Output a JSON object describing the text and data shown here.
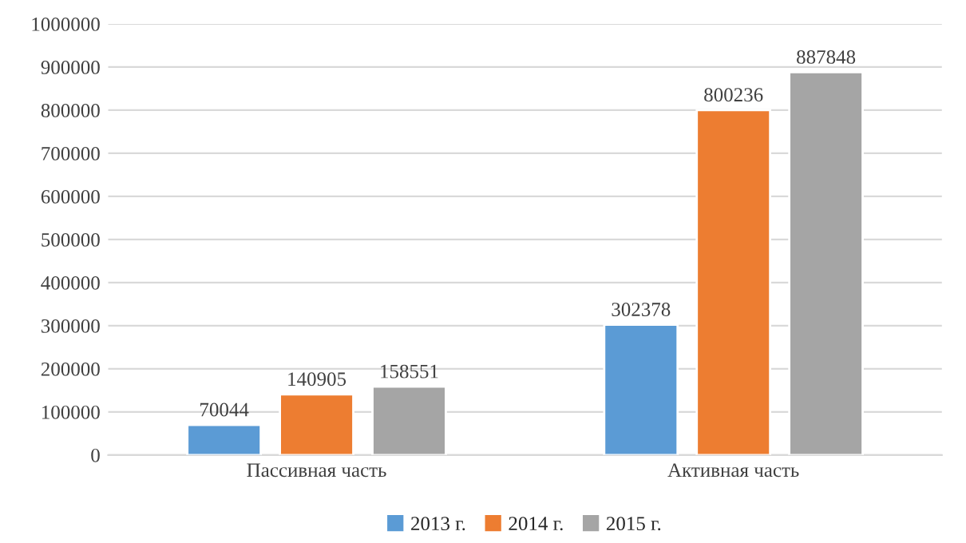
{
  "chart_data": {
    "type": "bar",
    "categories": [
      "Пассивная часть",
      "Активная часть"
    ],
    "series": [
      {
        "name": "2013 г.",
        "color": "#5b9bd5",
        "values": [
          70044,
          302378
        ]
      },
      {
        "name": "2014 г.",
        "color": "#ed7d31",
        "values": [
          140905,
          800236
        ]
      },
      {
        "name": "2015 г.",
        "color": "#a5a5a5",
        "values": [
          158551,
          887848
        ]
      }
    ],
    "ylim": [
      0,
      1000000
    ],
    "yticks": [
      0,
      100000,
      200000,
      300000,
      400000,
      500000,
      600000,
      700000,
      800000,
      900000,
      1000000
    ],
    "grid": "y",
    "legend": "bottom",
    "data_labels": true
  }
}
